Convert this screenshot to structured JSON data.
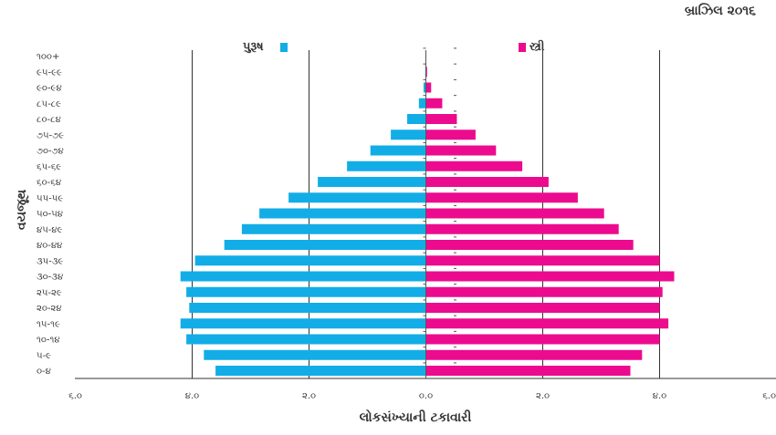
{
  "chart_data": {
    "type": "bar",
    "title": "બ્રાઝિલ ૨૦૧૬",
    "xlabel": "લોકસંખ્યાની ટકાવારી",
    "ylabel": "વયજૂથ",
    "categories": [
      "૦-૪",
      "૫-૯",
      "૧૦-૧૪",
      "૧૫-૧૯",
      "૨૦-૨૪",
      "૨૫-૨૯",
      "૩૦-૩૪",
      "૩૫-૩૯",
      "૪૦-૪૪",
      "૪૫-૪૯",
      "૫૦-૫૪",
      "૫૫-૫૯",
      "૬૦-૬૪",
      "૬૫-૬૯",
      "૭૦-૭૪",
      "૭૫-૭૯",
      "૮૦-૮૪",
      "૮૫-૮૯",
      "૯૦-૯૪",
      "૯૫-૯૯",
      "૧૦૦+"
    ],
    "series": [
      {
        "name": "પુરૂષ",
        "color": "#12ade6",
        "values": [
          3.6,
          3.8,
          4.1,
          4.2,
          4.05,
          4.1,
          4.2,
          3.95,
          3.45,
          3.15,
          2.85,
          2.35,
          1.85,
          1.35,
          0.95,
          0.6,
          0.32,
          0.12,
          0.04,
          0.01,
          0.0
        ]
      },
      {
        "name": "સ્ત્રી",
        "color": "#ec0b8e",
        "values": [
          3.5,
          3.7,
          4.0,
          4.15,
          4.0,
          4.05,
          4.25,
          4.0,
          3.55,
          3.3,
          3.05,
          2.6,
          2.1,
          1.65,
          1.2,
          0.85,
          0.53,
          0.28,
          0.09,
          0.02,
          0.0
        ]
      }
    ],
    "xlim": [
      -6,
      6
    ],
    "x_tick_labels": [
      "૬.૦",
      "૪.૦",
      "૨.૦",
      "૦.૦",
      "૨.૦",
      "૪.૦",
      "૬.૦"
    ],
    "grid": true,
    "legend": "top"
  }
}
